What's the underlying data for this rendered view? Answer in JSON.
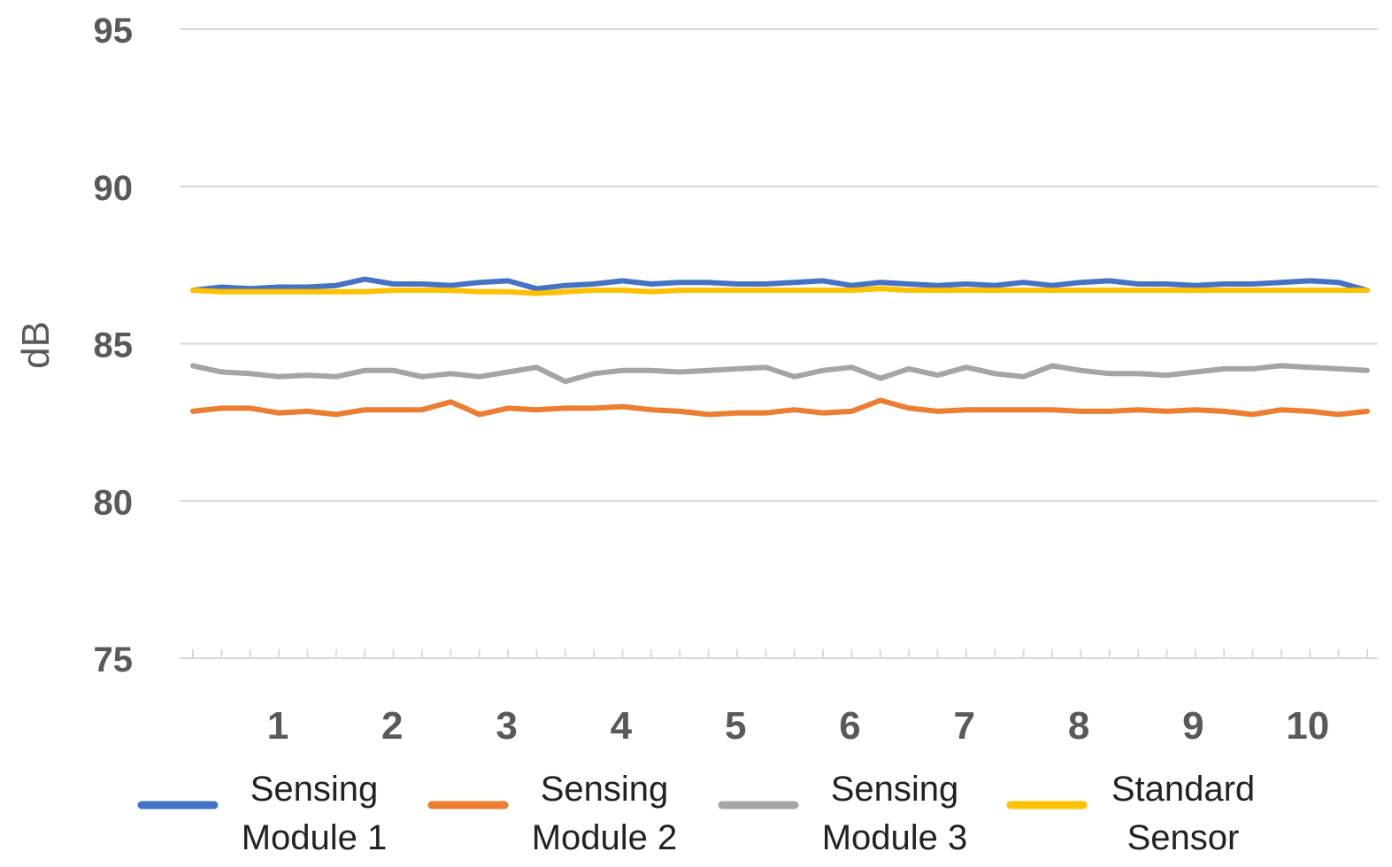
{
  "chart_data": {
    "type": "line",
    "title": "",
    "xlabel": "",
    "ylabel": "dB",
    "ylim": [
      75,
      95
    ],
    "yticks": [
      75,
      80,
      85,
      90,
      95
    ],
    "xtick_labels": [
      "1",
      "2",
      "3",
      "4",
      "5",
      "6",
      "7",
      "8",
      "9",
      "10"
    ],
    "x_points": 42,
    "grid": true,
    "legend_position": "bottom",
    "series": [
      {
        "name": "Sensing Module 1",
        "name_lines": [
          "Sensing",
          "Module 1"
        ],
        "color": "#4472C4",
        "values": [
          86.7,
          86.8,
          86.75,
          86.8,
          86.8,
          86.85,
          87.05,
          86.9,
          86.9,
          86.85,
          86.95,
          87.0,
          86.75,
          86.85,
          86.9,
          87.0,
          86.9,
          86.95,
          86.95,
          86.9,
          86.9,
          86.95,
          87.0,
          86.85,
          86.95,
          86.9,
          86.85,
          86.9,
          86.85,
          86.95,
          86.85,
          86.95,
          87.0,
          86.9,
          86.9,
          86.85,
          86.9,
          86.9,
          86.95,
          87.0,
          86.95,
          86.7
        ]
      },
      {
        "name": "Sensing Module 2",
        "name_lines": [
          "Sensing",
          "Module 2"
        ],
        "color": "#ED7D31",
        "values": [
          82.85,
          82.95,
          82.95,
          82.8,
          82.85,
          82.75,
          82.9,
          82.9,
          82.9,
          83.15,
          82.75,
          82.95,
          82.9,
          82.95,
          82.95,
          83.0,
          82.9,
          82.85,
          82.75,
          82.8,
          82.8,
          82.9,
          82.8,
          82.85,
          83.2,
          82.95,
          82.85,
          82.9,
          82.9,
          82.9,
          82.9,
          82.85,
          82.85,
          82.9,
          82.85,
          82.9,
          82.85,
          82.75,
          82.9,
          82.85,
          82.75,
          82.85
        ]
      },
      {
        "name": "Sensing Module 3",
        "name_lines": [
          "Sensing",
          "Module 3"
        ],
        "color": "#A5A5A5",
        "values": [
          84.3,
          84.1,
          84.05,
          83.95,
          84.0,
          83.95,
          84.15,
          84.15,
          83.95,
          84.05,
          83.95,
          84.1,
          84.25,
          83.8,
          84.05,
          84.15,
          84.15,
          84.1,
          84.15,
          84.2,
          84.25,
          83.95,
          84.15,
          84.25,
          83.9,
          84.2,
          84.0,
          84.25,
          84.05,
          83.95,
          84.3,
          84.15,
          84.05,
          84.05,
          84.0,
          84.1,
          84.2,
          84.2,
          84.3,
          84.25,
          84.2,
          84.15
        ]
      },
      {
        "name": "Standard Sensor",
        "name_lines": [
          "Standard",
          "Sensor"
        ],
        "color": "#FFC000",
        "values": [
          86.7,
          86.65,
          86.65,
          86.65,
          86.65,
          86.65,
          86.65,
          86.7,
          86.7,
          86.7,
          86.65,
          86.65,
          86.6,
          86.65,
          86.7,
          86.7,
          86.65,
          86.7,
          86.7,
          86.7,
          86.7,
          86.7,
          86.7,
          86.7,
          86.75,
          86.7,
          86.7,
          86.7,
          86.7,
          86.7,
          86.7,
          86.7,
          86.7,
          86.7,
          86.7,
          86.7,
          86.7,
          86.7,
          86.7,
          86.7,
          86.7,
          86.7
        ]
      }
    ]
  }
}
